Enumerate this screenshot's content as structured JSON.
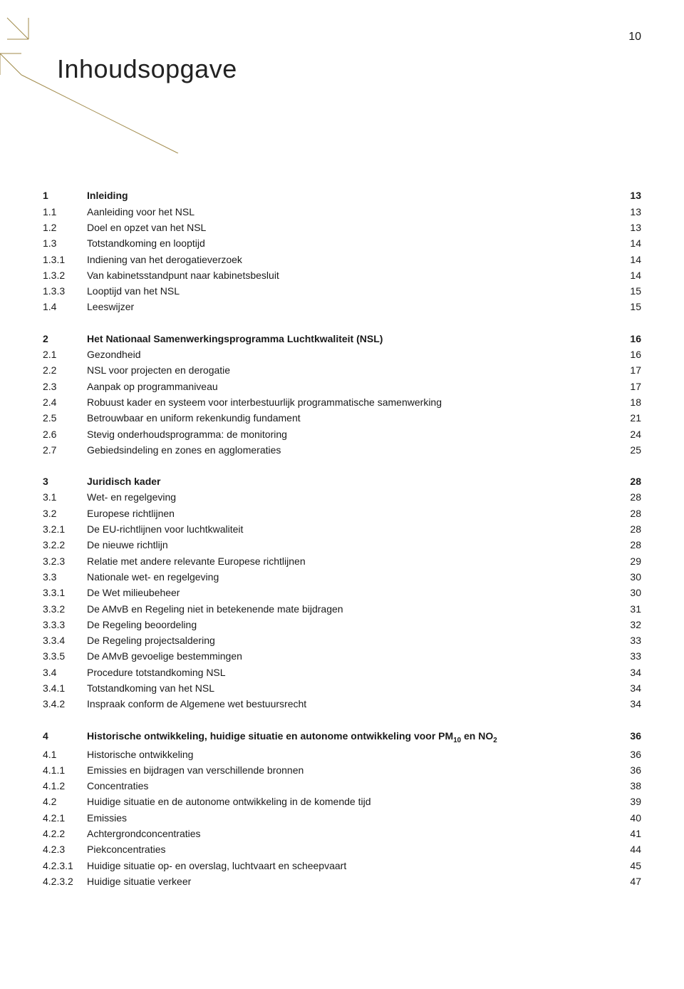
{
  "page_number": "10",
  "title": "Inhoudsopgave",
  "accent_color": "#a08a4a",
  "sections": [
    {
      "entries": [
        {
          "num": "1",
          "title": "Inleiding",
          "page": "13",
          "bold": true
        },
        {
          "num": "1.1",
          "title": "Aanleiding voor het NSL",
          "page": "13"
        },
        {
          "num": "1.2",
          "title": "Doel en opzet van het NSL",
          "page": "13"
        },
        {
          "num": "1.3",
          "title": "Totstandkoming en looptijd",
          "page": "14"
        },
        {
          "num": "1.3.1",
          "title": "Indiening van het derogatieverzoek",
          "page": "14"
        },
        {
          "num": "1.3.2",
          "title": "Van kabinetsstandpunt naar kabinetsbesluit",
          "page": "14"
        },
        {
          "num": "1.3.3",
          "title": "Looptijd van het NSL",
          "page": "15"
        },
        {
          "num": "1.4",
          "title": "Leeswijzer",
          "page": "15"
        }
      ]
    },
    {
      "entries": [
        {
          "num": "2",
          "title": "Het Nationaal Samenwerkingsprogramma Luchtkwaliteit (NSL)",
          "page": "16",
          "bold": true
        },
        {
          "num": "2.1",
          "title": "Gezondheid",
          "page": "16"
        },
        {
          "num": "2.2",
          "title": "NSL voor projecten en derogatie",
          "page": "17"
        },
        {
          "num": "2.3",
          "title": "Aanpak op programmaniveau",
          "page": "17"
        },
        {
          "num": "2.4",
          "title": "Robuust kader en systeem voor interbestuurlijk programmatische samenwerking",
          "page": "18"
        },
        {
          "num": "2.5",
          "title": "Betrouwbaar en uniform rekenkundig fundament",
          "page": "21"
        },
        {
          "num": "2.6",
          "title": "Stevig onderhoudsprogramma: de monitoring",
          "page": "24"
        },
        {
          "num": "2.7",
          "title": "Gebiedsindeling en zones en agglomeraties",
          "page": "25"
        }
      ]
    },
    {
      "entries": [
        {
          "num": "3",
          "title": "Juridisch kader",
          "page": "28",
          "bold": true
        },
        {
          "num": "3.1",
          "title": "Wet- en regelgeving",
          "page": "28"
        },
        {
          "num": "3.2",
          "title": "Europese richtlijnen",
          "page": "28"
        },
        {
          "num": "3.2.1",
          "title": "De EU-richtlijnen voor luchtkwaliteit",
          "page": "28"
        },
        {
          "num": "3.2.2",
          "title": "De nieuwe richtlijn",
          "page": "28"
        },
        {
          "num": "3.2.3",
          "title": "Relatie met andere relevante Europese richtlijnen",
          "page": "29"
        },
        {
          "num": "3.3",
          "title": "Nationale wet- en regelgeving",
          "page": "30"
        },
        {
          "num": "3.3.1",
          "title": "De Wet milieubeheer",
          "page": "30"
        },
        {
          "num": "3.3.2",
          "title": "De AMvB en Regeling niet in betekenende mate bijdragen",
          "page": "31"
        },
        {
          "num": "3.3.3",
          "title": "De Regeling beoordeling",
          "page": "32"
        },
        {
          "num": "3.3.4",
          "title": "De Regeling projectsaldering",
          "page": "33"
        },
        {
          "num": "3.3.5",
          "title": "De AMvB gevoelige bestemmingen",
          "page": "33"
        },
        {
          "num": "3.4",
          "title": "Procedure totstandkoming NSL",
          "page": "34"
        },
        {
          "num": "3.4.1",
          "title": "Totstandkoming van het NSL",
          "page": "34"
        },
        {
          "num": "3.4.2",
          "title": "Inspraak conform de Algemene wet bestuursrecht",
          "page": "34"
        }
      ]
    },
    {
      "entries": [
        {
          "num": "4",
          "title_html": "Historische ontwikkeling, huidige situatie en autonome ontwikkeling voor PM<sub>10</sub> en NO<sub>2</sub>",
          "page": "36",
          "bold": true
        },
        {
          "num": "4.1",
          "title": "Historische ontwikkeling",
          "page": "36"
        },
        {
          "num": "4.1.1",
          "title": "Emissies en bijdragen van verschillende bronnen",
          "page": "36"
        },
        {
          "num": "4.1.2",
          "title": "Concentraties",
          "page": "38"
        },
        {
          "num": "4.2",
          "title": "Huidige situatie en de autonome ontwikkeling in de komende tijd",
          "page": "39"
        },
        {
          "num": "4.2.1",
          "title": "Emissies",
          "page": "40"
        },
        {
          "num": "4.2.2",
          "title": "Achtergrondconcentraties",
          "page": "41"
        },
        {
          "num": "4.2.3",
          "title": "Piekconcentraties",
          "page": "44"
        },
        {
          "num": "4.2.3.1",
          "title": "Huidige situatie op- en overslag, luchtvaart en scheepvaart",
          "page": "45"
        },
        {
          "num": "4.2.3.2",
          "title": "Huidige situatie verkeer",
          "page": "47"
        }
      ]
    }
  ]
}
